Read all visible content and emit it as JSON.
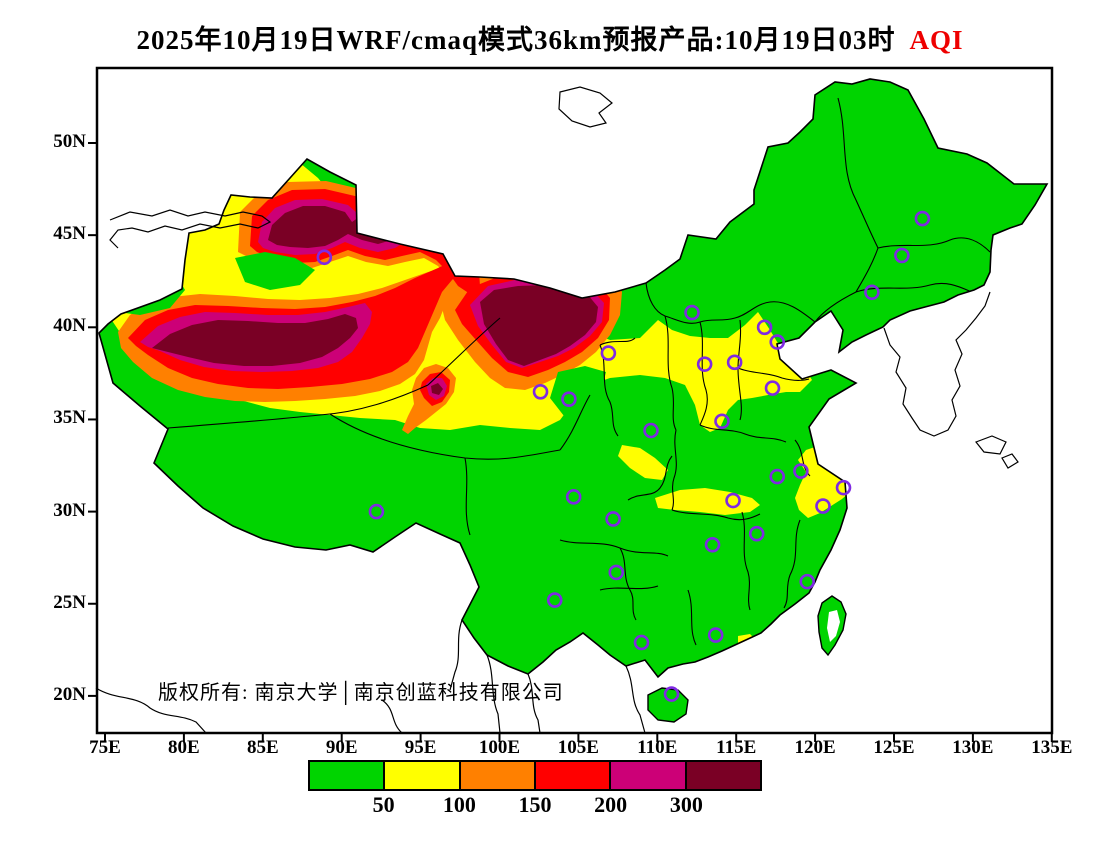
{
  "title": {
    "text": "2025年10月19日WRF/cmaq模式36km预报产品:10月19日03时",
    "highlight": "AQI",
    "highlight_color": "#EE0000"
  },
  "copyright": "版权所有: 南京大学│南京创蓝科技有限公司",
  "axes": {
    "x_ticks": [
      "75E",
      "80E",
      "85E",
      "90E",
      "95E",
      "100E",
      "105E",
      "110E",
      "115E",
      "120E",
      "125E",
      "130E",
      "135E"
    ],
    "y_ticks": [
      "50N",
      "45N",
      "40N",
      "35N",
      "30N",
      "25N",
      "20N"
    ]
  },
  "legend": {
    "labels": [
      "50",
      "100",
      "150",
      "200",
      "300"
    ]
  },
  "chart_data": {
    "type": "heatmap",
    "subtype": "filled-contour-map",
    "variable": "AQI",
    "model": "WRF/cmaq 36km",
    "valid_time": "2025-10-19 03时",
    "region": "China",
    "lon_range": [
      75,
      135
    ],
    "lat_range": [
      20,
      50
    ],
    "grid": false,
    "legend_position": "bottom",
    "levels": [
      {
        "range": "<50",
        "color": "#00D400"
      },
      {
        "range": "50-100",
        "color": "#FFFF00"
      },
      {
        "range": "100-150",
        "color": "#FF8000"
      },
      {
        "range": "150-200",
        "color": "#FF0000"
      },
      {
        "range": "200-300",
        "color": "#CC0077"
      },
      {
        "range": ">300",
        "color": "#7A0025"
      }
    ],
    "high_aqi_zones": [
      {
        "area": "Tarim Basin, southern Xinjiang (76-90E, 36-41N)",
        "peak_level": ">300"
      },
      {
        "area": "Junggar Basin, northern Xinjiang (85-92E, 43-46N)",
        "peak_level": ">300"
      },
      {
        "area": "Western Inner Mongolia / Ejina (99-107E, 39-42.5N)",
        "peak_level": ">300"
      },
      {
        "area": "Qaidam Basin small spot (~95.5E, 36.5N)",
        "peak_level": ">300"
      },
      {
        "area": "Gansu-Shaanxi-Shanxi-Hebei-Shandong band (35-39N)",
        "peak_level": "50-100"
      },
      {
        "area": "Jiangsu-Shanghai coastal patch",
        "peak_level": "50-100"
      },
      {
        "area": "Most of eastern and southern China",
        "peak_level": "<50"
      }
    ],
    "city_markers": {
      "marker": "hollow-circle",
      "color": "#7F2AE2",
      "points_lonlat": [
        [
          88.9,
          43.8
        ],
        [
          126.8,
          45.9
        ],
        [
          125.5,
          43.9
        ],
        [
          123.6,
          41.9
        ],
        [
          112.2,
          40.8
        ],
        [
          116.8,
          40.0
        ],
        [
          117.6,
          39.2
        ],
        [
          106.9,
          38.6
        ],
        [
          114.9,
          38.1
        ],
        [
          113.0,
          38.0
        ],
        [
          117.3,
          36.7
        ],
        [
          102.6,
          36.5
        ],
        [
          104.4,
          36.1
        ],
        [
          114.1,
          34.9
        ],
        [
          109.6,
          34.4
        ],
        [
          117.6,
          31.9
        ],
        [
          119.1,
          32.2
        ],
        [
          121.8,
          31.3
        ],
        [
          120.5,
          30.3
        ],
        [
          114.8,
          30.6
        ],
        [
          104.7,
          30.8
        ],
        [
          107.2,
          29.6
        ],
        [
          92.2,
          30.0
        ],
        [
          116.3,
          28.8
        ],
        [
          113.5,
          28.2
        ],
        [
          107.4,
          26.7
        ],
        [
          119.5,
          26.2
        ],
        [
          103.5,
          25.2
        ],
        [
          109.0,
          22.9
        ],
        [
          113.7,
          23.3
        ],
        [
          110.9,
          20.1
        ]
      ]
    }
  }
}
